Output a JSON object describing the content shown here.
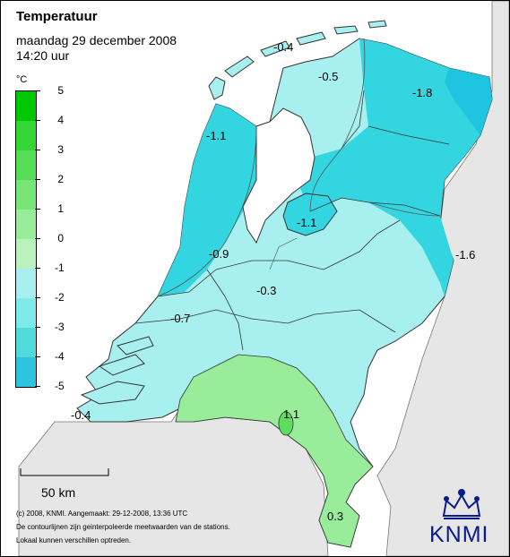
{
  "title": "Temperatuur",
  "date": "maandag 29 december 2008",
  "time": "14:20 uur",
  "unit": "°C",
  "legend": {
    "ticks": [
      "5",
      "4",
      "3",
      "2",
      "1",
      "0",
      "-1",
      "-2",
      "-3",
      "-4",
      "-5"
    ],
    "colors": [
      "#00c800",
      "#33d633",
      "#55de55",
      "#77e677",
      "#99ec99",
      "#bbf2bb",
      "#a8f0f0",
      "#7eeaea",
      "#50dada",
      "#2ec4e0",
      "#1ea8e0"
    ]
  },
  "map_labels": [
    {
      "text": "-0.4"
    },
    {
      "text": "-0.5"
    },
    {
      "text": "-1.8"
    },
    {
      "text": "-1.1"
    },
    {
      "text": "-1.1"
    },
    {
      "text": "-0.9"
    },
    {
      "text": "-1.6"
    },
    {
      "text": "-0.3"
    },
    {
      "text": "-0.7"
    },
    {
      "text": "-0.4"
    },
    {
      "text": "1.1"
    },
    {
      "text": "0.3"
    }
  ],
  "scalebar": "50 km",
  "footer": {
    "line1": "(c) 2008, KNMI. Aangemaakt: 29-12-2008, 13:36 UTC",
    "line2": "De contourlijnen zijn geinterpoleerde meetwaarden van de stations.",
    "line3": "Lokaal kunnen verschillen optreden."
  },
  "logo_text": "KNMI",
  "colors": {
    "sea": "#ffffff",
    "germany": "#e6e6e6",
    "above_zero": "#99ec99",
    "zero_to_minus1": "#a8f0f0",
    "minus1_to_minus2": "#33d6e0",
    "minus2_below": "#1ec4e0",
    "knmi_blue": "#0a1b8c"
  }
}
